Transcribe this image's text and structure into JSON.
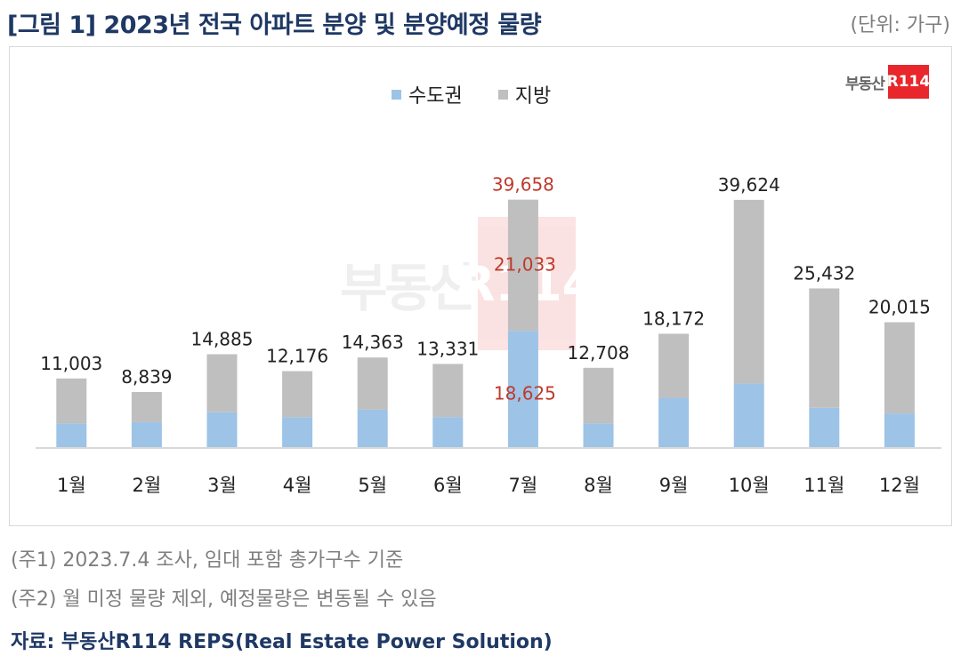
{
  "header": {
    "title": "[그림 1] 2023년 전국 아파트 분양 및 분양예정 물량",
    "unit": "(단위: 가구)"
  },
  "logo": {
    "text": "부동산",
    "box": "R114"
  },
  "colors": {
    "capital": "#9dc3e6",
    "regional": "#bfbfbf",
    "highlight": "#c0392b",
    "title": "#1f3864"
  },
  "chart_data": {
    "type": "bar",
    "stacked": true,
    "categories": [
      "1월",
      "2월",
      "3월",
      "4월",
      "5월",
      "6월",
      "7월",
      "8월",
      "9월",
      "10월",
      "11월",
      "12월"
    ],
    "series": [
      {
        "name": "수도권",
        "values": [
          3800,
          4000,
          5600,
          4800,
          6000,
          4800,
          18625,
          3800,
          7900,
          10200,
          6300,
          5400
        ]
      },
      {
        "name": "지방",
        "values": [
          7203,
          4839,
          9285,
          7376,
          8363,
          8531,
          21033,
          8908,
          10272,
          29424,
          19132,
          14615
        ]
      }
    ],
    "totals": [
      11003,
      8839,
      14885,
      12176,
      14363,
      13331,
      39658,
      12708,
      18172,
      39624,
      25432,
      20015
    ],
    "total_labels": [
      "11,003",
      "8,839",
      "14,885",
      "12,176",
      "14,363",
      "13,331",
      "39,658",
      "12,708",
      "18,172",
      "39,624",
      "25,432",
      "20,015"
    ],
    "highlight": {
      "month": "7월",
      "capital_label": "18,625",
      "regional_label": "21,033"
    },
    "ylim": [
      0,
      52000
    ],
    "legend_position": "top-center",
    "grid": false
  },
  "notes": [
    "(주1) 2023.7.4 조사, 임대 포함 총가구수 기준",
    "(주2) 월 미정 물량 제외, 예정물량은 변동될 수 있음"
  ],
  "source": "자료: 부동산R114 REPS(Real Estate Power Solution)"
}
